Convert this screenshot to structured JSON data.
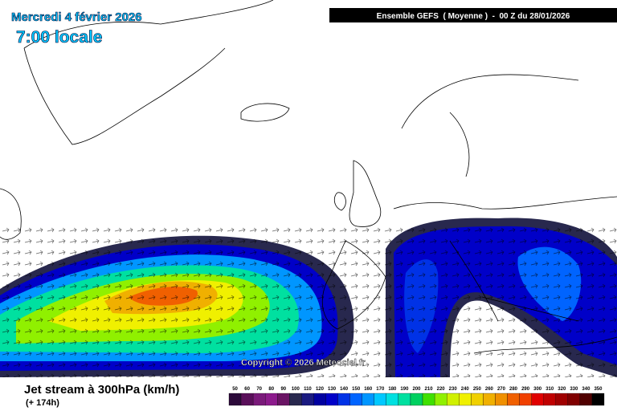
{
  "title": {
    "date": "Mercredi 4 février 2026",
    "time": "7:00 locale"
  },
  "header": "Ensemble GEFS  ( Moyenne )  -  00 Z du 28/01/2026",
  "copyright": "Copyright © 2026 Meteociel.fr",
  "legend": {
    "label": "Jet stream à 300hPa (km/h)",
    "lead": "(+ 174h)",
    "ticks": [
      50,
      60,
      70,
      80,
      90,
      100,
      110,
      120,
      130,
      140,
      150,
      160,
      170,
      180,
      190,
      200,
      210,
      220,
      230,
      240,
      250,
      260,
      270,
      280,
      290,
      300,
      310,
      320,
      330,
      340,
      350
    ],
    "colors": [
      "#2c0a3a",
      "#5a0f5a",
      "#7a1a7a",
      "#8c1a8c",
      "#6a1464",
      "#28284e",
      "#1a1a80",
      "#0000a0",
      "#0000c8",
      "#0032e6",
      "#0064ff",
      "#0096ff",
      "#00c8ff",
      "#00e0e0",
      "#00e0a0",
      "#00d060",
      "#40e000",
      "#90f000",
      "#d0f000",
      "#f0f000",
      "#f0d000",
      "#f0b000",
      "#f09000",
      "#f06000",
      "#f04000",
      "#e00000",
      "#c00000",
      "#a00000",
      "#800000",
      "#500000",
      "#000000"
    ]
  }
}
